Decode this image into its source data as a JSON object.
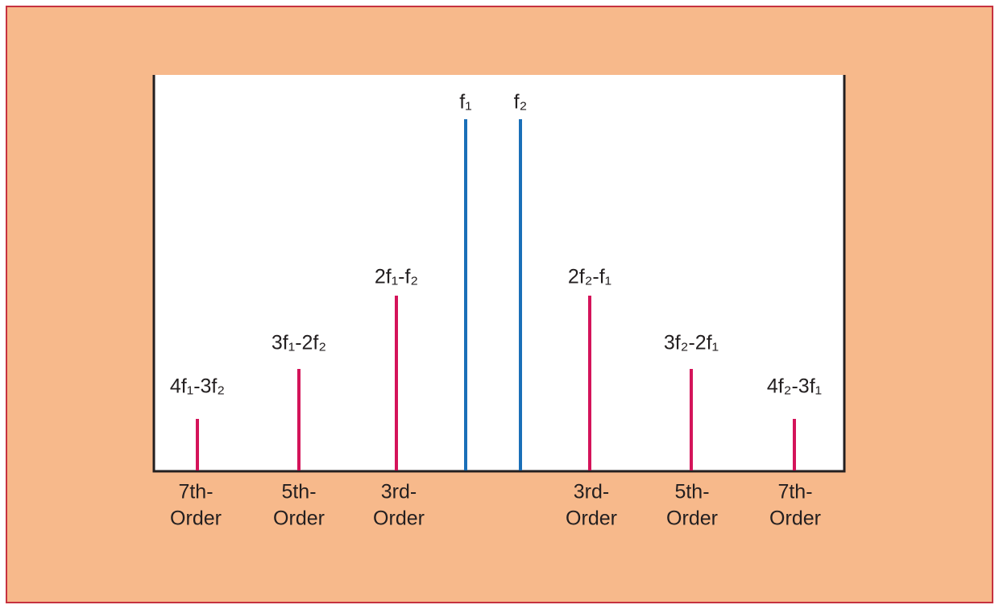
{
  "spectral_lines": [
    {
      "label": "4f₁-3f₂"
    },
    {
      "label": "3f₁-2f₂"
    },
    {
      "label": "2f₁-f₂"
    },
    {
      "label": "f₁"
    },
    {
      "label": "f₂"
    },
    {
      "label": "2f₂-f₁"
    },
    {
      "label": "3f₂-2f₁"
    },
    {
      "label": "4f₂-3f₁"
    }
  ],
  "order_labels": [
    {
      "lines": [
        "7th-",
        "Order"
      ]
    },
    {
      "lines": [
        "5th-",
        "Order"
      ]
    },
    {
      "lines": [
        "3rd-",
        "Order"
      ]
    },
    {
      "lines": [
        "3rd-",
        "Order"
      ]
    },
    {
      "lines": [
        "5th-",
        "Order"
      ]
    },
    {
      "lines": [
        "7th-",
        "Order"
      ]
    }
  ]
}
